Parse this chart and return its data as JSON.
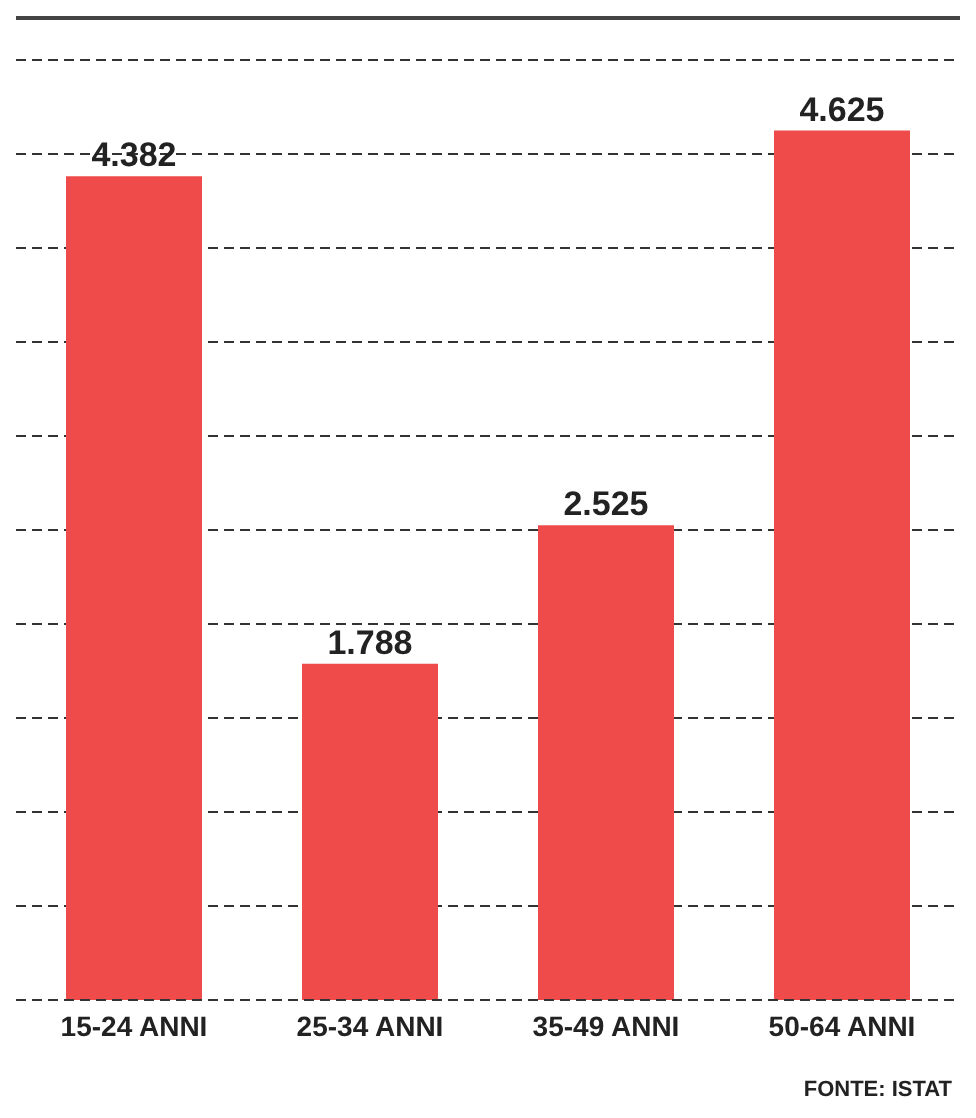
{
  "chart_data": {
    "type": "bar",
    "categories": [
      "15-24 ANNI",
      "25-34 ANNI",
      "35-49 ANNI",
      "50-64 ANNI"
    ],
    "values": [
      4.382,
      1.788,
      2.525,
      4.625
    ],
    "color": "#ef4b4b",
    "data_labels": true,
    "grid": "y",
    "tick_labels": "x",
    "annotations": [
      "FONTE: ISTAT"
    ]
  }
}
